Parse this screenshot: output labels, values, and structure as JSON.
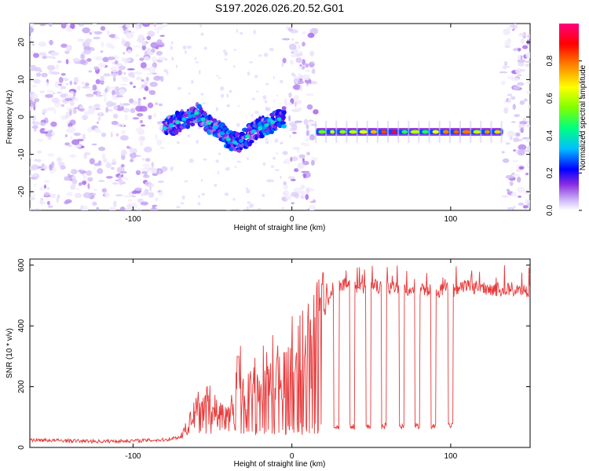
{
  "chart_data": [
    {
      "type": "heatmap",
      "title": "S197.2026.026.20.52.G01",
      "xlabel": "Height of straight line (km)",
      "ylabel": "Frequency (Hz)",
      "xlim": [
        -165,
        150
      ],
      "ylim": [
        -25,
        25
      ],
      "x_ticks": [
        -100,
        0,
        100
      ],
      "y_ticks": [
        -20,
        -10,
        0,
        10,
        20
      ],
      "colorbar": {
        "label": "Normalized spectral amplitude",
        "range": [
          0,
          1
        ],
        "ticks": [
          "0.0",
          "0.2",
          "0.4",
          "0.6",
          "0.8"
        ],
        "colors": [
          "#ffffff",
          "#c9b0f5",
          "#8a2be2",
          "#0000ff",
          "#00bfff",
          "#00ff80",
          "#80ff00",
          "#ffff00",
          "#ff8000",
          "#ff0000",
          "#ff0080"
        ]
      },
      "ridge_segments": [
        {
          "x": [
            -80,
            -75,
            -70,
            -65,
            -60,
            -55,
            -50,
            -45,
            -40,
            -35,
            -30,
            -25,
            -20,
            -15,
            -10,
            -5
          ],
          "freq": [
            -3,
            -2,
            -1,
            0,
            1,
            -1,
            -2,
            -4,
            -6,
            -7,
            -6,
            -4,
            -3,
            -2,
            -1,
            0
          ]
        },
        {
          "x": [
            15,
            133
          ],
          "freq": [
            -4,
            -4
          ]
        }
      ]
    },
    {
      "type": "line",
      "xlabel": "Height of straight line (km)",
      "ylabel": "SNR (10 * v/v)",
      "xlim": [
        -165,
        150
      ],
      "ylim": [
        0,
        620
      ],
      "x_ticks": [
        -100,
        0,
        100
      ],
      "y_ticks": [
        0,
        200,
        400,
        600
      ],
      "series": [
        {
          "name": "SNR",
          "x": [
            -165,
            -140,
            -120,
            -100,
            -80,
            -70,
            -66,
            -60,
            -55,
            -50,
            -45,
            -40,
            -36,
            -34,
            -30,
            -25,
            -20,
            -15,
            -10,
            -5,
            0,
            5,
            10,
            15,
            18,
            22,
            28,
            40,
            60,
            80,
            100,
            110,
            130,
            150
          ],
          "values": [
            25,
            22,
            20,
            22,
            25,
            35,
            70,
            130,
            160,
            140,
            120,
            100,
            150,
            300,
            150,
            200,
            250,
            220,
            280,
            250,
            320,
            300,
            330,
            380,
            400,
            480,
            540,
            530,
            525,
            520,
            515,
            530,
            520,
            515
          ]
        }
      ]
    }
  ]
}
